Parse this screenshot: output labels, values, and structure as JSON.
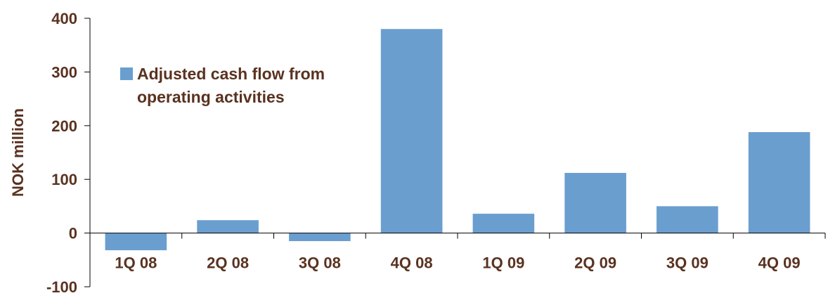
{
  "chart_data": {
    "type": "bar",
    "categories": [
      "1Q 08",
      "2Q 08",
      "3Q 08",
      "4Q 08",
      "1Q 09",
      "2Q 09",
      "3Q 09",
      "4Q 09"
    ],
    "series": [
      {
        "name": "Adjusted cash flow from operating activities",
        "values": [
          -32,
          24,
          -15,
          380,
          36,
          112,
          50,
          188
        ]
      }
    ],
    "ylabel": "NOK million",
    "ylim": [
      -100,
      400
    ],
    "yticks": [
      400,
      300,
      200,
      100,
      0,
      -100
    ],
    "legend": {
      "position": "top-left",
      "lines": [
        "Adjusted cash flow from",
        "operating activities"
      ]
    },
    "grid": false,
    "colors": {
      "bar": "#6a9ecf",
      "text": "#5a3220",
      "axis": "#000000"
    }
  }
}
